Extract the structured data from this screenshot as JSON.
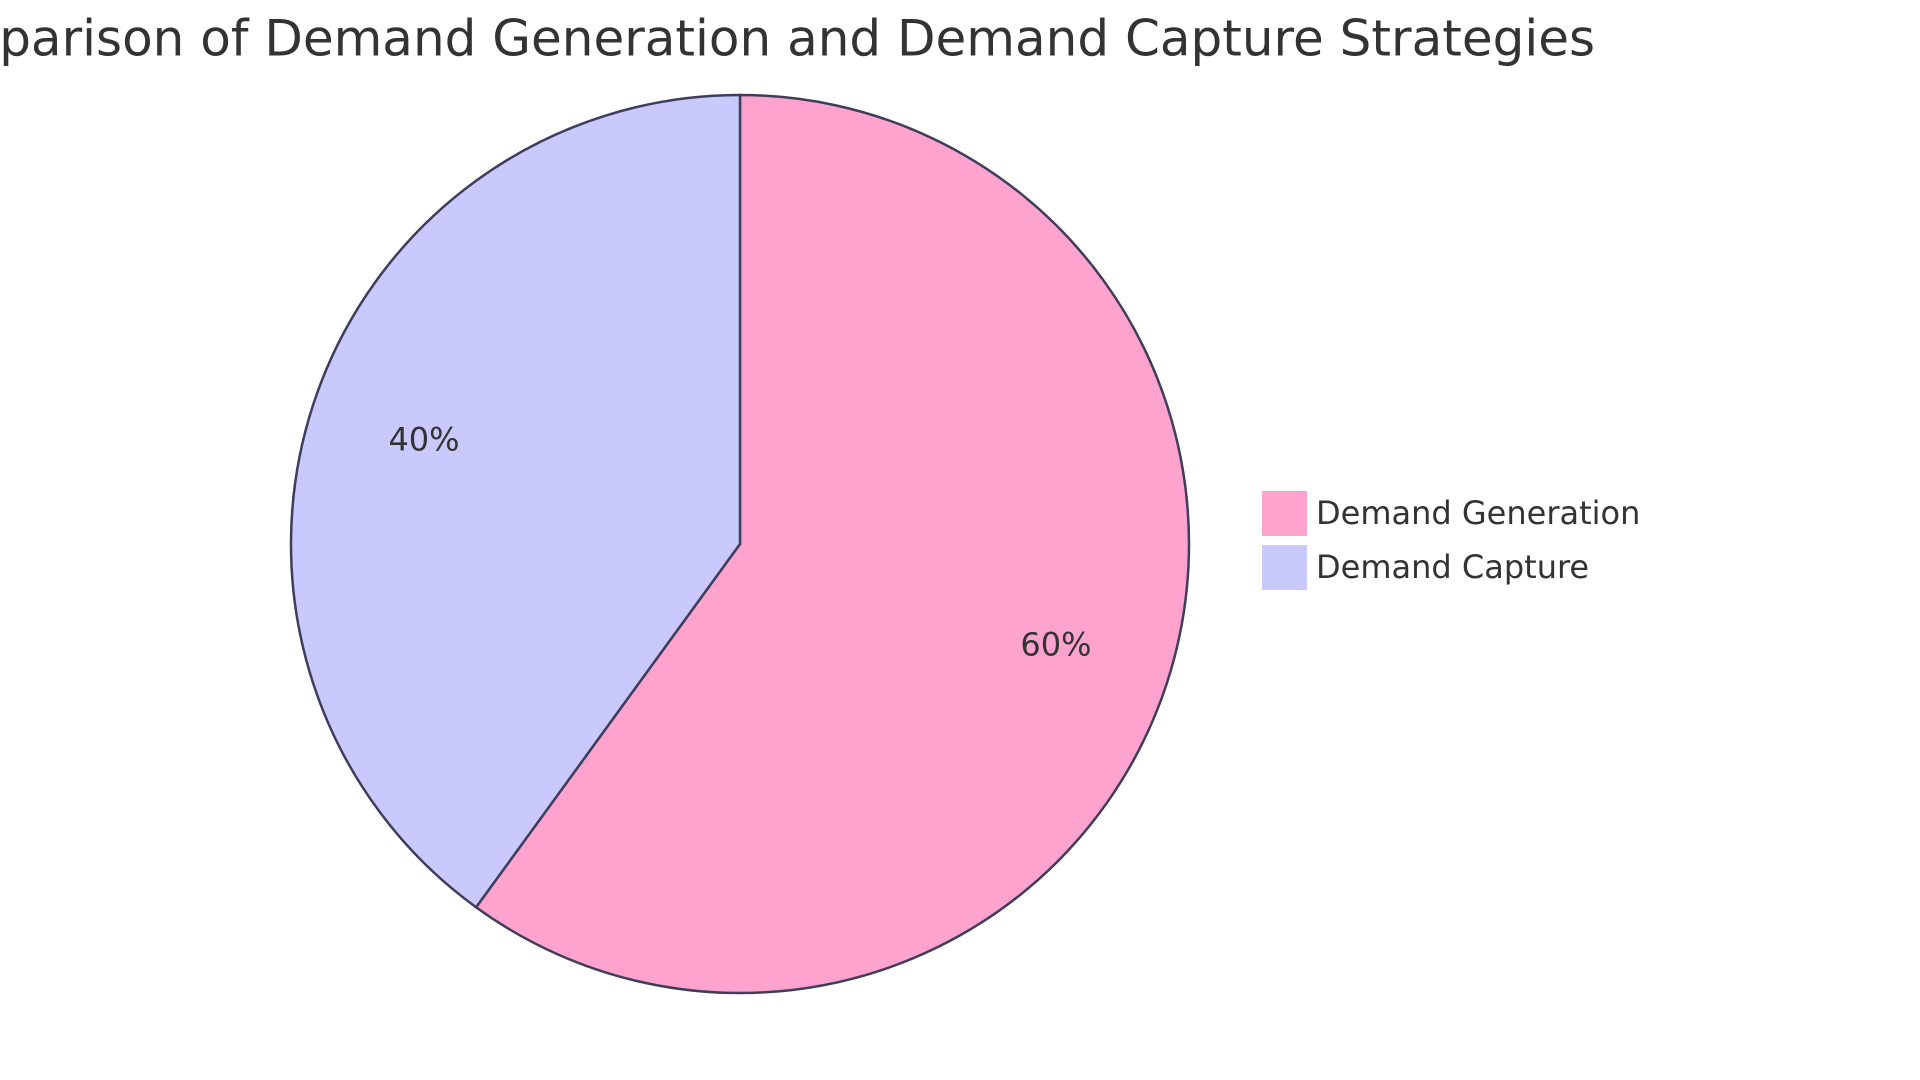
{
  "chart_data": {
    "type": "pie",
    "title": "Comparison of Demand Generation and Demand Capture Strategies",
    "categories": [
      "Demand Generation",
      "Demand Capture"
    ],
    "values": [
      60,
      40
    ],
    "value_labels": [
      "60%",
      "40%"
    ],
    "colors": [
      "#fea3cd",
      "#c9c9fe"
    ]
  }
}
